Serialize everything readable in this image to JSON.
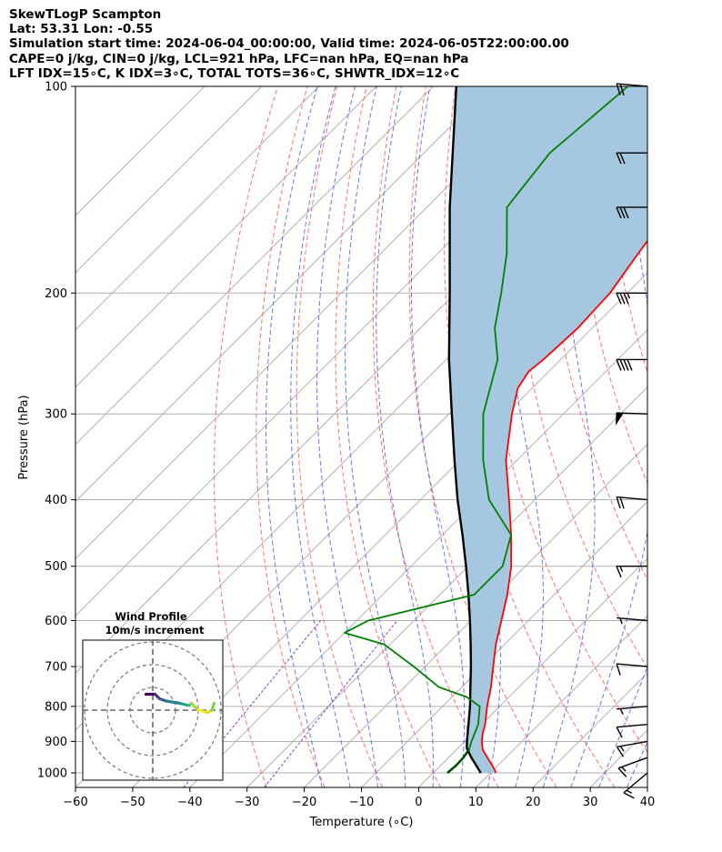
{
  "header": {
    "line1": "SkewTLogP Scampton",
    "line2": "Lat: 53.31   Lon: -0.55",
    "line3": "Simulation start time: 2024-06-04_00:00:00, Valid time: 2024-06-05T22:00:00.00",
    "line4": "CAPE=0 j/kg, CIN=0 j/kg, LCL=921 hPa, LFC=nan hPa, EQ=nan hPa",
    "line5": "LFT IDX=15∘C, K IDX=3∘C, TOTAL TOTS=36∘C, SHWTR_IDX=12∘C"
  },
  "chart_data": {
    "type": "skew-t-log-p",
    "xlabel": "Temperature (∘C)",
    "ylabel": "Pressure (hPa)",
    "xlim": [
      -60,
      40
    ],
    "ylim": [
      1050,
      100
    ],
    "x_ticks": [
      -60,
      -50,
      -40,
      -30,
      -20,
      -10,
      0,
      10,
      20,
      30,
      40
    ],
    "x_tick_labels": [
      "−60",
      "−50",
      "−40",
      "−30",
      "−20",
      "−10",
      "0",
      "10",
      "20",
      "30",
      "40"
    ],
    "y_ticks": [
      1000,
      900,
      800,
      700,
      600,
      500,
      400,
      300,
      200,
      100
    ],
    "y_tick_labels": [
      "1000",
      "900",
      "800",
      "700",
      "600",
      "500",
      "400",
      "300",
      "200",
      "100"
    ],
    "grid": true,
    "colors": {
      "temperature": "#ff0000",
      "dewpoint": "#008000",
      "parcel": "#000000",
      "fill": "#a5c8e0",
      "isotherm": "#b0b0b0",
      "dry_adiabat": "#ff6060",
      "moist_adiabat": "#4a5ef0",
      "mixing_ratio": "#8a3cc8"
    },
    "series": [
      {
        "name": "temperature",
        "points": [
          {
            "p": 1000,
            "t": 11.0
          },
          {
            "p": 975,
            "t": 9.0
          },
          {
            "p": 950,
            "t": 6.8
          },
          {
            "p": 925,
            "t": 4.6
          },
          {
            "p": 900,
            "t": 3.0
          },
          {
            "p": 875,
            "t": 1.7
          },
          {
            "p": 850,
            "t": 0.6
          },
          {
            "p": 800,
            "t": -2.2
          },
          {
            "p": 750,
            "t": -4.9
          },
          {
            "p": 700,
            "t": -8.1
          },
          {
            "p": 650,
            "t": -11.5
          },
          {
            "p": 600,
            "t": -14.7
          },
          {
            "p": 550,
            "t": -18.2
          },
          {
            "p": 500,
            "t": -22.5
          },
          {
            "p": 450,
            "t": -28.0
          },
          {
            "p": 400,
            "t": -34.5
          },
          {
            "p": 350,
            "t": -42.0
          },
          {
            "p": 300,
            "t": -49.0
          },
          {
            "p": 275,
            "t": -52.5
          },
          {
            "p": 260,
            "t": -53.5
          },
          {
            "p": 250,
            "t": -53.0
          },
          {
            "p": 225,
            "t": -52.5
          },
          {
            "p": 200,
            "t": -53.0
          },
          {
            "p": 175,
            "t": -55.0
          },
          {
            "p": 150,
            "t": -57.0
          },
          {
            "p": 125,
            "t": -58.5
          },
          {
            "p": 110,
            "t": -60.0
          },
          {
            "p": 100,
            "t": -62.0
          }
        ]
      },
      {
        "name": "dewpoint",
        "points": [
          {
            "p": 1000,
            "t": 2.5
          },
          {
            "p": 975,
            "t": 2.7
          },
          {
            "p": 950,
            "t": 2.6
          },
          {
            "p": 925,
            "t": 2.2
          },
          {
            "p": 900,
            "t": 1.2
          },
          {
            "p": 850,
            "t": -0.6
          },
          {
            "p": 800,
            "t": -3.5
          },
          {
            "p": 775,
            "t": -7.5
          },
          {
            "p": 750,
            "t": -14.0
          },
          {
            "p": 700,
            "t": -22.0
          },
          {
            "p": 650,
            "t": -31.0
          },
          {
            "p": 625,
            "t": -40.0
          },
          {
            "p": 600,
            "t": -38.0
          },
          {
            "p": 550,
            "t": -24.0
          },
          {
            "p": 500,
            "t": -24.0
          },
          {
            "p": 450,
            "t": -28.0
          },
          {
            "p": 400,
            "t": -38.0
          },
          {
            "p": 350,
            "t": -46.0
          },
          {
            "p": 300,
            "t": -54.0
          },
          {
            "p": 250,
            "t": -61.0
          },
          {
            "p": 225,
            "t": -67.0
          },
          {
            "p": 200,
            "t": -72.0
          },
          {
            "p": 175,
            "t": -78.0
          },
          {
            "p": 150,
            "t": -86.0
          },
          {
            "p": 125,
            "t": -88.0
          },
          {
            "p": 100,
            "t": -86.0
          }
        ]
      },
      {
        "name": "parcel",
        "points": [
          {
            "p": 1000,
            "t": 8.3
          },
          {
            "p": 975,
            "t": 6.2
          },
          {
            "p": 950,
            "t": 4.0
          },
          {
            "p": 921,
            "t": 1.6
          },
          {
            "p": 900,
            "t": 0.4
          },
          {
            "p": 850,
            "t": -2.3
          },
          {
            "p": 800,
            "t": -5.2
          },
          {
            "p": 750,
            "t": -8.5
          },
          {
            "p": 700,
            "t": -12.0
          },
          {
            "p": 650,
            "t": -15.9
          },
          {
            "p": 600,
            "t": -20.2
          },
          {
            "p": 550,
            "t": -25.0
          },
          {
            "p": 500,
            "t": -30.4
          },
          {
            "p": 450,
            "t": -36.5
          },
          {
            "p": 400,
            "t": -43.5
          },
          {
            "p": 350,
            "t": -51.0
          },
          {
            "p": 300,
            "t": -59.5
          },
          {
            "p": 250,
            "t": -69.5
          },
          {
            "p": 200,
            "t": -81.0
          },
          {
            "p": 150,
            "t": -96.0
          },
          {
            "p": 100,
            "t": -116.0
          }
        ]
      }
    ],
    "wind_barbs_kt": [
      {
        "p": 1000,
        "speed": 15,
        "dir": 230
      },
      {
        "p": 950,
        "speed": 15,
        "dir": 250
      },
      {
        "p": 900,
        "speed": 15,
        "dir": 260
      },
      {
        "p": 850,
        "speed": 10,
        "dir": 265
      },
      {
        "p": 800,
        "speed": 5,
        "dir": 265
      },
      {
        "p": 700,
        "speed": 10,
        "dir": 275
      },
      {
        "p": 600,
        "speed": 5,
        "dir": 275
      },
      {
        "p": 500,
        "speed": 15,
        "dir": 270
      },
      {
        "p": 400,
        "speed": 20,
        "dir": 275
      },
      {
        "p": 300,
        "speed": 50,
        "dir": 272
      },
      {
        "p": 250,
        "speed": 40,
        "dir": 270
      },
      {
        "p": 200,
        "speed": 35,
        "dir": 270
      },
      {
        "p": 150,
        "speed": 30,
        "dir": 270
      },
      {
        "p": 125,
        "speed": 20,
        "dir": 270
      },
      {
        "p": 100,
        "speed": 20,
        "dir": 275
      }
    ],
    "hodograph": {
      "title": "Wind Profile",
      "subtitle": "10m/s increment",
      "rings_ms": [
        10,
        20,
        30
      ],
      "trace": [
        {
          "u": -3,
          "v": 7
        },
        {
          "u": 1,
          "v": 7
        },
        {
          "u": 3,
          "v": 5
        },
        {
          "u": 6,
          "v": 4
        },
        {
          "u": 12,
          "v": 3
        },
        {
          "u": 16,
          "v": 2
        },
        {
          "u": 17,
          "v": 3
        },
        {
          "u": 20,
          "v": 0
        },
        {
          "u": 24,
          "v": -1
        },
        {
          "u": 26,
          "v": 0
        },
        {
          "u": 27,
          "v": 3
        }
      ]
    }
  }
}
